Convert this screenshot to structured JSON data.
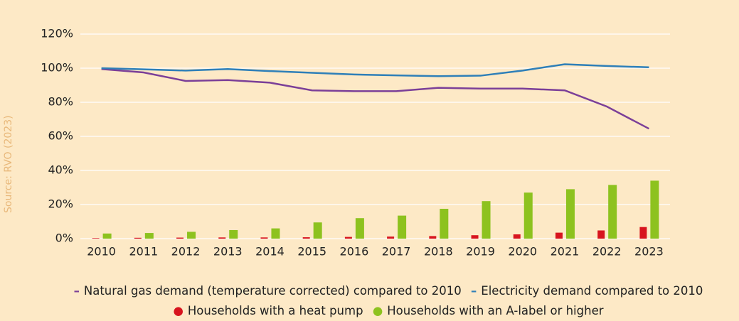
{
  "chart_data": {
    "type": "bar",
    "source": "Source: RVO (2023)",
    "categories": [
      "2010",
      "2011",
      "2012",
      "2013",
      "2014",
      "2015",
      "2016",
      "2017",
      "2018",
      "2019",
      "2020",
      "2021",
      "2022",
      "2023"
    ],
    "series": [
      {
        "name": "Natural gas demand (temperature corrected) compared to 2010",
        "type": "line",
        "color": "#7b3f98",
        "values": [
          99.5,
          97.5,
          92.5,
          93,
          91.5,
          87,
          86.5,
          86.5,
          88.5,
          88,
          88,
          87,
          77.5,
          64.5
        ]
      },
      {
        "name": "Electricity demand compared to 2010",
        "type": "line",
        "color": "#2e7fb8",
        "values": [
          100,
          99.3,
          98.6,
          99.5,
          98.3,
          97.3,
          96.3,
          95.8,
          95.3,
          95.6,
          98.6,
          102.3,
          101.3,
          100.5
        ]
      },
      {
        "name": "Households with a heat pump",
        "type": "bar",
        "color": "#d7141e",
        "values": [
          0.3,
          0.5,
          0.6,
          0.7,
          0.7,
          0.8,
          1,
          1.2,
          1.5,
          2,
          2.5,
          3.5,
          4.8,
          6.8
        ]
      },
      {
        "name": "Households with an A-label or higher",
        "type": "bar",
        "color": "#8dc21f",
        "values": [
          3,
          3.3,
          4,
          5,
          6,
          9.5,
          12,
          13.5,
          17.5,
          22,
          27,
          29,
          31.5,
          34
        ]
      }
    ],
    "ylim": [
      0,
      120
    ],
    "yticks": [
      {
        "value": 0,
        "label": "0%"
      },
      {
        "value": 20,
        "label": "20%"
      },
      {
        "value": 40,
        "label": "40%"
      },
      {
        "value": 60,
        "label": "60%"
      },
      {
        "value": 80,
        "label": "80%"
      },
      {
        "value": 100,
        "label": "100%"
      },
      {
        "value": 120,
        "label": "120%"
      }
    ],
    "grid": true
  }
}
